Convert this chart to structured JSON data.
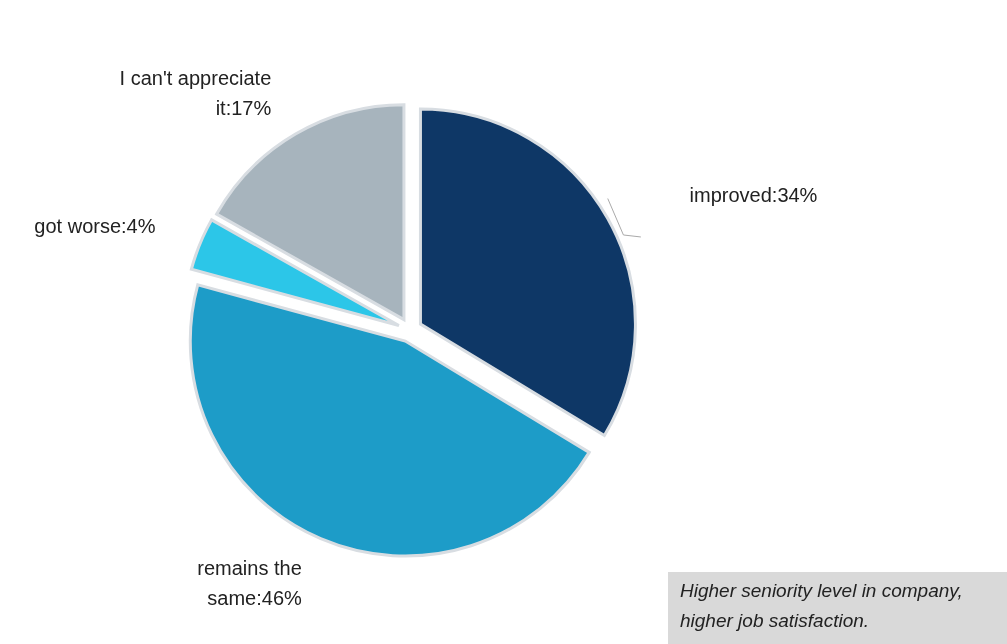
{
  "chart_data": {
    "type": "pie",
    "categories": [
      "improved",
      "remains the same",
      "got worse",
      "I can't appreciate it"
    ],
    "values": [
      34,
      46,
      4,
      17
    ],
    "value_labels": [
      "34%",
      "46%",
      "4%",
      "17%"
    ],
    "colors": [
      "#0e3766",
      "#1d9cc8",
      "#2cc6e8",
      "#a7b4bd"
    ],
    "annotations": [
      "Higher seniority level in company, higher job satisfaction."
    ]
  }
}
